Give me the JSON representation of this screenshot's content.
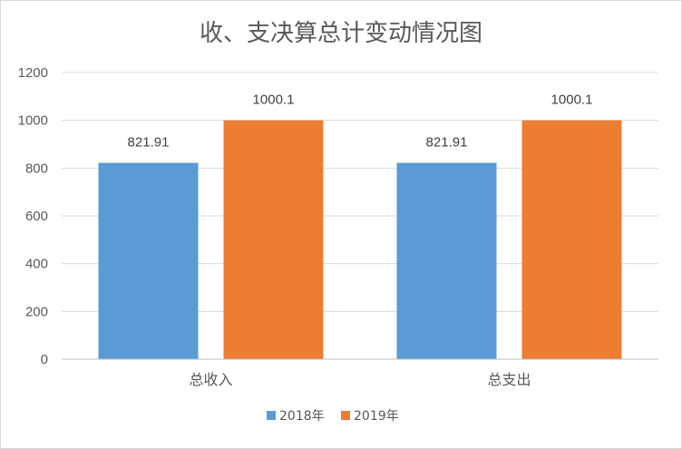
{
  "chart_data": {
    "type": "bar",
    "title": "收、支决算总计变动情况图",
    "categories": [
      "总收入",
      "总支出"
    ],
    "series": [
      {
        "name": "2018年",
        "values": [
          821.91,
          821.91
        ],
        "color": "#5b9bd5",
        "labels": [
          "821.91",
          "821.91"
        ]
      },
      {
        "name": "2019年",
        "values": [
          1000.1,
          1000.1
        ],
        "color": "#ed7d31",
        "labels": [
          "1000.1",
          "1000.1"
        ]
      }
    ],
    "ylim": [
      0,
      1200
    ],
    "yticks": [
      0,
      200,
      400,
      600,
      800,
      1000,
      1200
    ],
    "grid": true,
    "legend": "bottom",
    "gridColor": "#d9d9d9",
    "axisColor": "#bfbfbf"
  }
}
